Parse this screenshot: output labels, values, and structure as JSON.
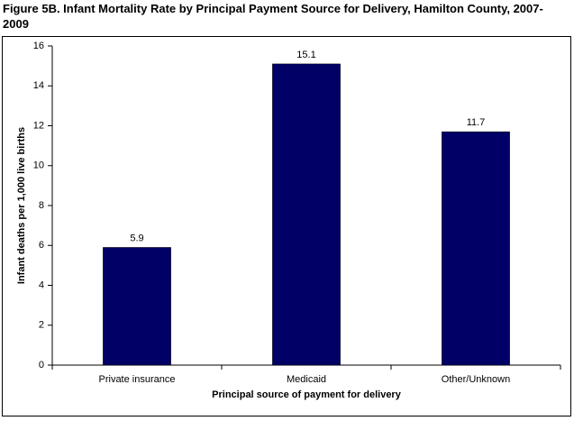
{
  "chart_data": {
    "type": "bar",
    "title": "Figure 5B. Infant Mortality Rate by Principal Payment Source for Delivery, Hamilton County, 2007-2009",
    "x_label": "Principal source of payment for delivery",
    "y_label": "Infant deaths per 1,000 live births",
    "categories": [
      "Private insurance",
      "Medicaid",
      "Other/Unknown"
    ],
    "values": [
      5.9,
      15.1,
      11.7
    ],
    "color": "#000066",
    "ylim": [
      0,
      16
    ],
    "yticks": [
      0,
      2,
      4,
      6,
      8,
      10,
      12,
      14,
      16
    ],
    "grid": false
  }
}
